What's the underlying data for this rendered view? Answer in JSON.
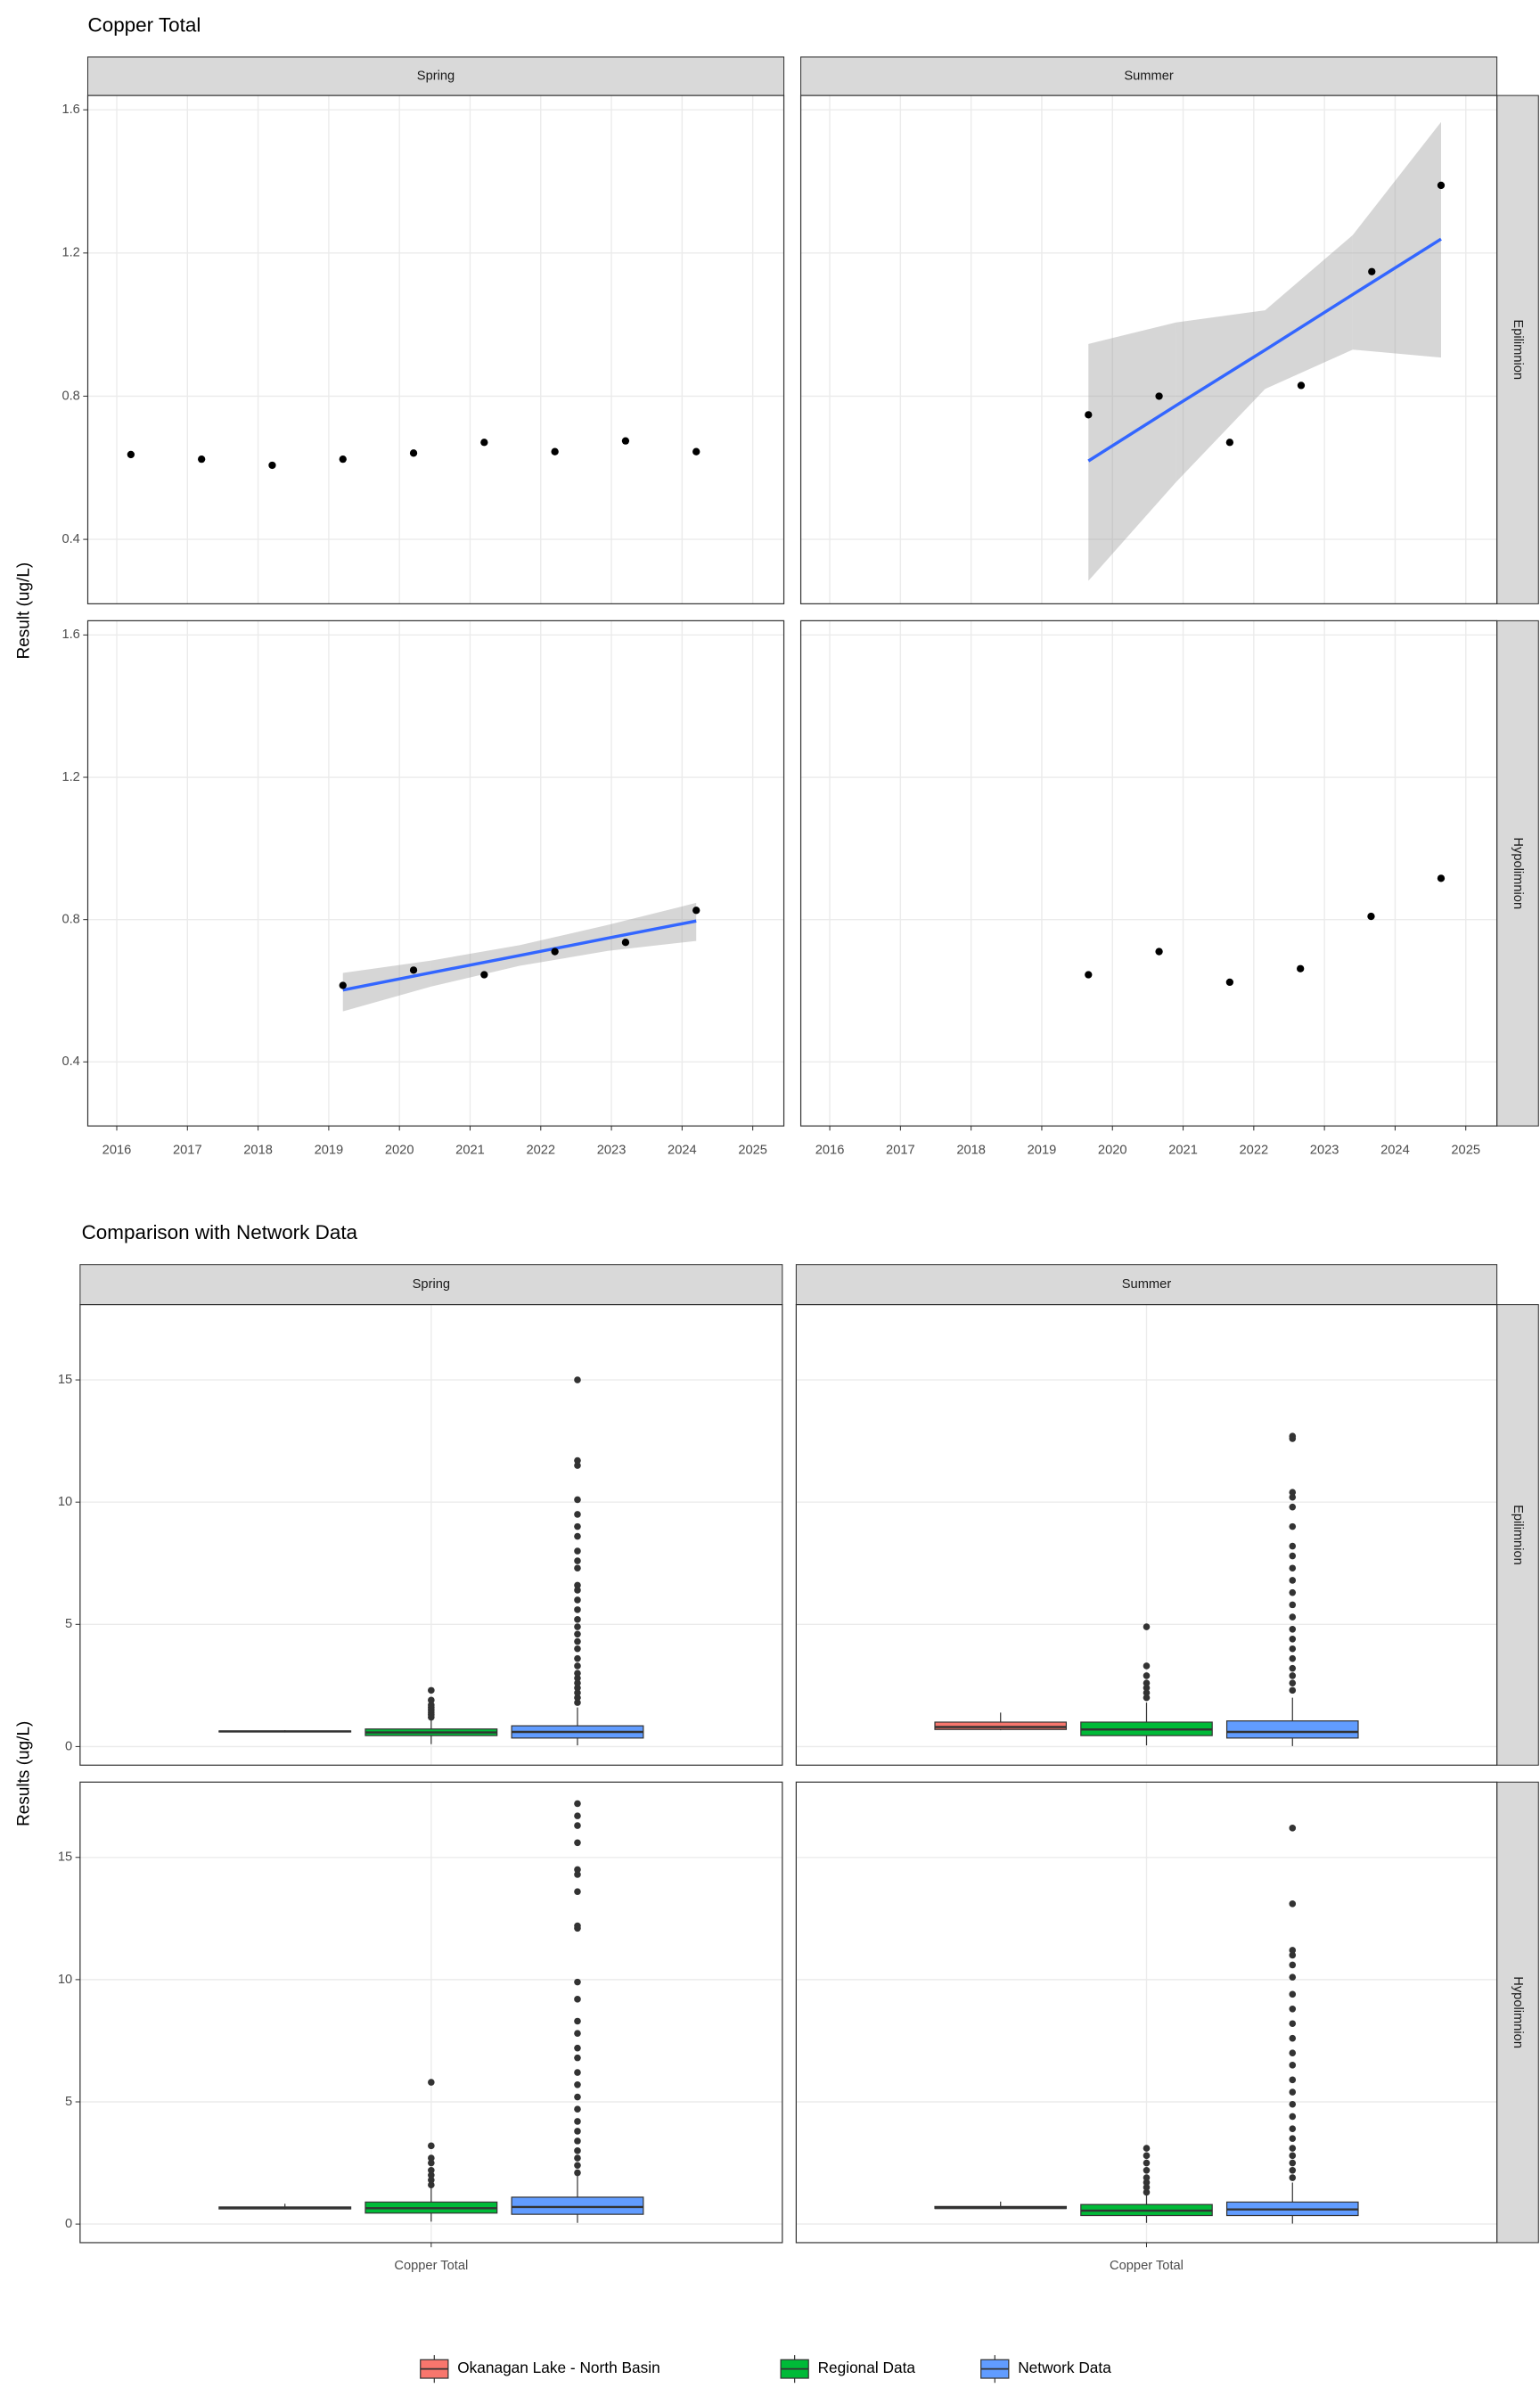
{
  "chart_data": [
    {
      "type": "scatter",
      "title": "Copper Total",
      "y_label": "Result (ug/L)",
      "columns": [
        "Spring",
        "Summer"
      ],
      "rows": [
        "Epilimnion",
        "Hypolimnion"
      ],
      "xlim": [
        2015.59,
        2025.44
      ],
      "xticks": [
        2016,
        2017,
        2018,
        2019,
        2020,
        2021,
        2022,
        2023,
        2024,
        2025
      ],
      "ylim": [
        0.22,
        1.64
      ],
      "yticks": [
        0.4,
        0.8,
        1.2,
        1.6
      ],
      "grid": true,
      "point_color": "#000000",
      "trend_color": "#3366FF",
      "band_color": "#999999",
      "panels": [
        {
          "x": [
            2016.2,
            2017.2,
            2018.2,
            2019.2,
            2020.2,
            2021.2,
            2022.2,
            2023.2,
            2024.2
          ],
          "values": [
            0.637,
            0.624,
            0.607,
            0.624,
            0.641,
            0.671,
            0.645,
            0.675,
            0.645
          ]
        },
        {
          "x": [
            2019.66,
            2020.66,
            2021.66,
            2022.67,
            2023.67,
            2024.65
          ],
          "values": [
            0.748,
            0.8,
            0.671,
            0.83,
            1.148,
            1.389
          ],
          "trend": {
            "x": [
              2019.66,
              2020.9,
              2022.16,
              2023.4,
              2024.65
            ],
            "fit": [
              0.619,
              0.774,
              0.929,
              1.084,
              1.239
            ],
            "upper": [
              0.946,
              1.006,
              1.04,
              1.25,
              1.566
            ],
            "lower": [
              0.284,
              0.56,
              0.82,
              0.93,
              0.908
            ]
          }
        },
        {
          "x": [
            2019.2,
            2020.2,
            2021.2,
            2022.2,
            2023.2,
            2024.2
          ],
          "values": [
            0.615,
            0.658,
            0.645,
            0.71,
            0.736,
            0.826
          ],
          "trend": {
            "x": [
              2019.2,
              2020.45,
              2021.7,
              2022.95,
              2024.2
            ],
            "fit": [
              0.602,
              0.651,
              0.699,
              0.748,
              0.796
            ],
            "upper": [
              0.65,
              0.685,
              0.728,
              0.785,
              0.847
            ],
            "lower": [
              0.542,
              0.612,
              0.67,
              0.712,
              0.74
            ]
          }
        },
        {
          "x": [
            2019.66,
            2020.66,
            2021.66,
            2022.66,
            2023.66,
            2024.65
          ],
          "values": [
            0.645,
            0.71,
            0.624,
            0.662,
            0.809,
            0.916
          ]
        }
      ]
    },
    {
      "type": "box",
      "title": "Comparison with Network Data",
      "y_label": "Results (ug/L)",
      "columns": [
        "Spring",
        "Summer"
      ],
      "rows": [
        "Epilimnion",
        "Hypolimnion"
      ],
      "categories": [
        "Copper Total"
      ],
      "ylim": [
        -0.76,
        18.08
      ],
      "yticks": [
        0,
        5,
        10,
        15
      ],
      "grid": true,
      "series": [
        {
          "name": "Okanagan Lake - North Basin",
          "color": "#F8766D"
        },
        {
          "name": "Regional Data",
          "color": "#00BA38"
        },
        {
          "name": "Network Data",
          "color": "#619CFF"
        }
      ],
      "panels": [
        {
          "boxes": [
            {
              "whislo": 0.58,
              "q1": 0.6,
              "med": 0.62,
              "q3": 0.64,
              "whishi": 0.67,
              "fliers": []
            },
            {
              "whislo": 0.1,
              "q1": 0.45,
              "med": 0.58,
              "q3": 0.72,
              "whishi": 1.1,
              "fliers": [
                1.2,
                1.3,
                1.4,
                1.5,
                1.6,
                1.7,
                1.9,
                2.3
              ]
            },
            {
              "whislo": 0.05,
              "q1": 0.35,
              "med": 0.6,
              "q3": 0.85,
              "whishi": 1.6,
              "fliers": [
                1.8,
                2.0,
                2.2,
                2.4,
                2.6,
                2.8,
                3.0,
                3.3,
                3.6,
                4.0,
                4.3,
                4.6,
                4.9,
                5.2,
                5.6,
                6.0,
                6.4,
                6.6,
                7.3,
                7.6,
                8.0,
                8.6,
                9.0,
                9.5,
                10.1,
                11.5,
                11.7,
                15.0
              ]
            }
          ]
        },
        {
          "boxes": [
            {
              "whislo": 0.67,
              "q1": 0.7,
              "med": 0.8,
              "q3": 1.0,
              "whishi": 1.39,
              "fliers": []
            },
            {
              "whislo": 0.05,
              "q1": 0.45,
              "med": 0.7,
              "q3": 1.0,
              "whishi": 1.8,
              "fliers": [
                2.0,
                2.2,
                2.4,
                2.6,
                2.9,
                3.3,
                4.9
              ]
            },
            {
              "whislo": 0.02,
              "q1": 0.35,
              "med": 0.6,
              "q3": 1.05,
              "whishi": 2.0,
              "fliers": [
                2.3,
                2.6,
                2.9,
                3.2,
                3.6,
                4.0,
                4.4,
                4.8,
                5.3,
                5.8,
                6.3,
                6.8,
                7.3,
                7.8,
                8.2,
                9.0,
                9.8,
                10.2,
                10.4,
                12.6,
                12.7
              ]
            }
          ]
        },
        {
          "boxes": [
            {
              "whislo": 0.6,
              "q1": 0.62,
              "med": 0.66,
              "q3": 0.7,
              "whishi": 0.83,
              "fliers": []
            },
            {
              "whislo": 0.1,
              "q1": 0.45,
              "med": 0.65,
              "q3": 0.9,
              "whishi": 1.5,
              "fliers": [
                1.6,
                1.8,
                2.0,
                2.2,
                2.5,
                2.7,
                3.2,
                5.8
              ]
            },
            {
              "whislo": 0.05,
              "q1": 0.4,
              "med": 0.7,
              "q3": 1.1,
              "whishi": 2.0,
              "fliers": [
                2.1,
                2.4,
                2.7,
                3.0,
                3.4,
                3.8,
                4.2,
                4.7,
                5.2,
                5.7,
                6.2,
                6.8,
                7.2,
                7.8,
                8.3,
                9.2,
                9.9,
                12.1,
                12.2,
                13.6,
                14.3,
                14.5,
                15.6,
                16.3,
                16.7,
                17.2
              ]
            }
          ]
        },
        {
          "boxes": [
            {
              "whislo": 0.62,
              "q1": 0.64,
              "med": 0.66,
              "q3": 0.72,
              "whishi": 0.92,
              "fliers": []
            },
            {
              "whislo": 0.05,
              "q1": 0.35,
              "med": 0.55,
              "q3": 0.8,
              "whishi": 1.2,
              "fliers": [
                1.3,
                1.5,
                1.7,
                1.9,
                2.2,
                2.5,
                2.8,
                3.1
              ]
            },
            {
              "whislo": 0.02,
              "q1": 0.35,
              "med": 0.6,
              "q3": 0.9,
              "whishi": 1.7,
              "fliers": [
                1.9,
                2.2,
                2.5,
                2.8,
                3.1,
                3.5,
                3.9,
                4.4,
                4.9,
                5.4,
                5.9,
                6.5,
                7.0,
                7.6,
                8.2,
                8.8,
                9.4,
                10.1,
                10.6,
                11.0,
                11.2,
                13.1,
                16.2
              ]
            }
          ]
        }
      ]
    }
  ]
}
